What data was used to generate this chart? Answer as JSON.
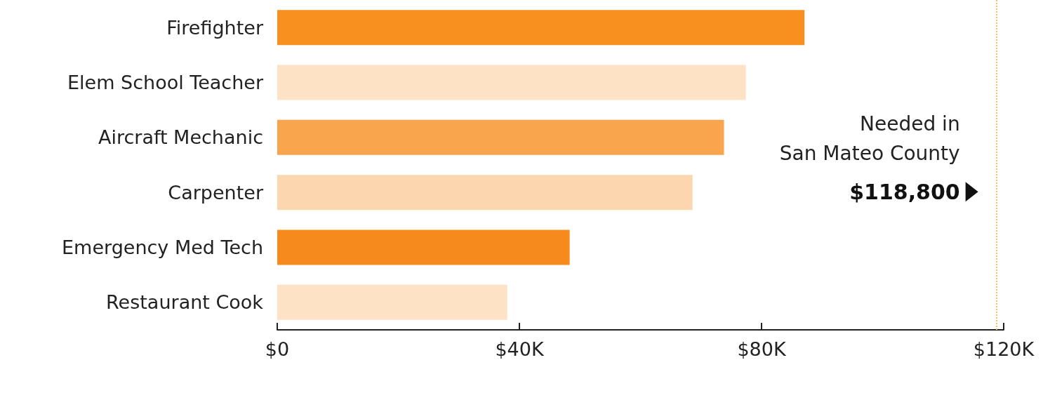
{
  "chart_data": {
    "type": "bar",
    "orientation": "horizontal",
    "categories": [
      "Firefighter",
      "Elem School Teacher",
      "Aircraft Mechanic",
      "Carpenter",
      "Emergency Med Tech",
      "Restaurant Cook"
    ],
    "values": [
      87100,
      77400,
      73800,
      68600,
      48300,
      38000
    ],
    "colors": [
      "#f7901e",
      "#fde2c6",
      "#f9a54e",
      "#fcd6ae",
      "#f68a1d",
      "#fde2c6"
    ],
    "xlim": [
      0,
      120000
    ],
    "xticks": [
      {
        "value": 0,
        "label": "$0"
      },
      {
        "value": 40000,
        "label": "$40K"
      },
      {
        "value": 80000,
        "label": "$80K"
      },
      {
        "value": 120000,
        "label": "$120K"
      }
    ],
    "grid": false,
    "ref_lines": [
      {
        "axis": "x",
        "value": 118800,
        "label": "Needed in\nSan Mateo County",
        "color": "#f0c46a",
        "line_style": "dotted"
      }
    ],
    "annotations": [
      {
        "text": "$118,800",
        "x": 118800
      }
    ]
  }
}
